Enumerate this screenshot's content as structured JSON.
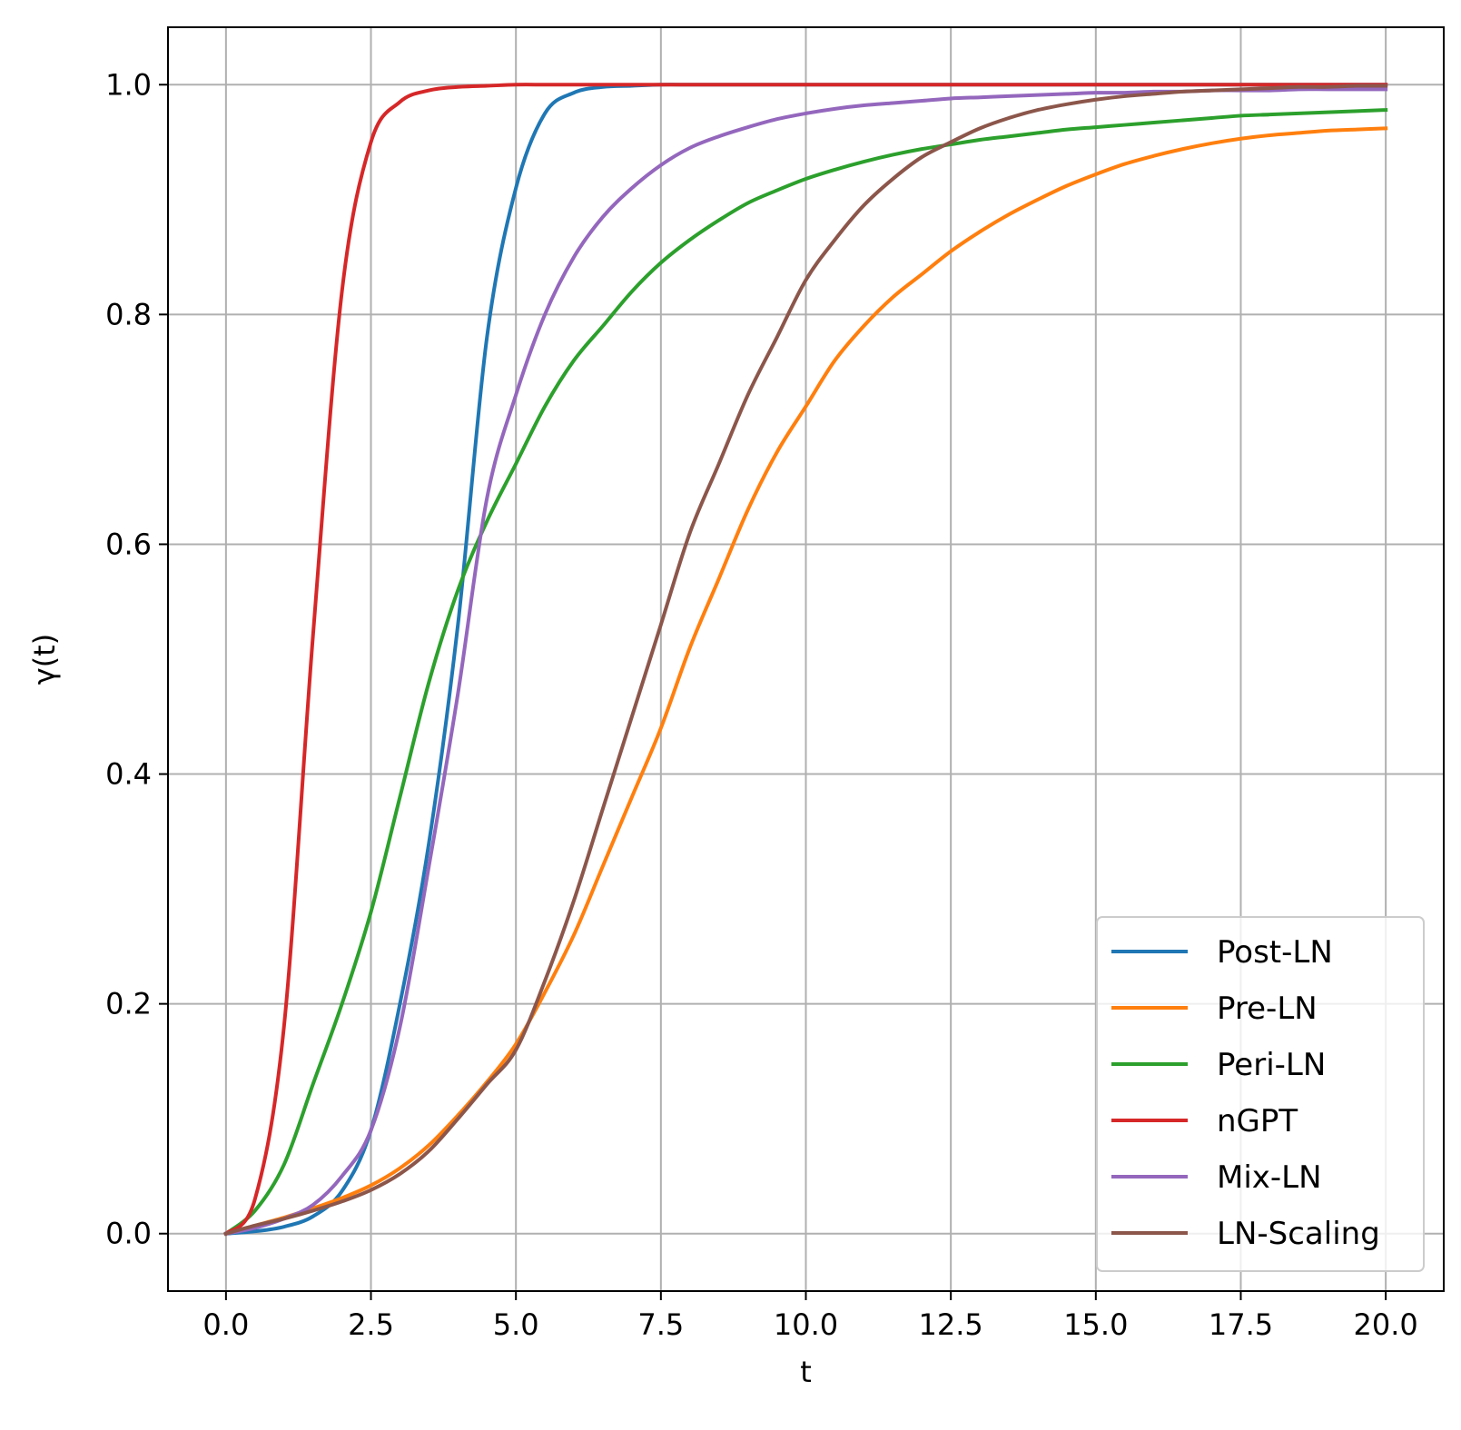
{
  "chart_data": {
    "type": "line",
    "title": "",
    "xlabel": "t",
    "ylabel": "γ(t)",
    "xlim": [
      -1.0,
      21.0
    ],
    "ylim": [
      -0.05,
      1.05
    ],
    "xticks": [
      0.0,
      2.5,
      5.0,
      7.5,
      10.0,
      12.5,
      15.0,
      17.5,
      20.0
    ],
    "xtick_labels": [
      "0.0",
      "2.5",
      "5.0",
      "7.5",
      "10.0",
      "12.5",
      "15.0",
      "17.5",
      "20.0"
    ],
    "yticks": [
      0.0,
      0.2,
      0.4,
      0.6,
      0.8,
      1.0
    ],
    "ytick_labels": [
      "0.0",
      "0.2",
      "0.4",
      "0.6",
      "0.8",
      "1.0"
    ],
    "grid": true,
    "legend_position": "lower-right",
    "x": [
      0,
      0.5,
      1,
      1.5,
      2,
      2.5,
      3,
      3.5,
      4,
      4.5,
      5,
      5.5,
      6,
      6.5,
      7,
      7.5,
      8,
      8.5,
      9,
      9.5,
      10,
      10.5,
      11,
      11.5,
      12,
      12.5,
      13,
      13.5,
      14,
      14.5,
      15,
      15.5,
      16,
      16.5,
      17,
      17.5,
      18,
      18.5,
      19,
      19.5,
      20
    ],
    "series": [
      {
        "name": "Post-LN",
        "color": "#1f77b4",
        "values": [
          0.0,
          0.002,
          0.006,
          0.015,
          0.037,
          0.09,
          0.2,
          0.34,
          0.53,
          0.78,
          0.91,
          0.975,
          0.993,
          0.998,
          0.999,
          1.0,
          1.0,
          1.0,
          1.0,
          1.0,
          1.0,
          1.0,
          1.0,
          1.0,
          1.0,
          1.0,
          1.0,
          1.0,
          1.0,
          1.0,
          1.0,
          1.0,
          1.0,
          1.0,
          1.0,
          1.0,
          1.0,
          1.0,
          1.0,
          1.0,
          1.0
        ]
      },
      {
        "name": "Pre-LN",
        "color": "#ff7f0e",
        "values": [
          0.0,
          0.007,
          0.014,
          0.022,
          0.031,
          0.042,
          0.057,
          0.077,
          0.103,
          0.132,
          0.165,
          0.21,
          0.26,
          0.32,
          0.38,
          0.44,
          0.51,
          0.57,
          0.63,
          0.68,
          0.72,
          0.76,
          0.79,
          0.815,
          0.835,
          0.855,
          0.872,
          0.887,
          0.9,
          0.912,
          0.922,
          0.931,
          0.938,
          0.944,
          0.949,
          0.953,
          0.956,
          0.958,
          0.96,
          0.961,
          0.962
        ]
      },
      {
        "name": "Peri-LN",
        "color": "#2ca02c",
        "values": [
          0.0,
          0.02,
          0.06,
          0.13,
          0.2,
          0.28,
          0.38,
          0.48,
          0.56,
          0.62,
          0.67,
          0.72,
          0.76,
          0.79,
          0.82,
          0.845,
          0.865,
          0.882,
          0.897,
          0.908,
          0.918,
          0.926,
          0.933,
          0.939,
          0.944,
          0.948,
          0.952,
          0.955,
          0.958,
          0.961,
          0.963,
          0.965,
          0.967,
          0.969,
          0.971,
          0.973,
          0.974,
          0.975,
          0.976,
          0.977,
          0.978
        ]
      },
      {
        "name": "nGPT",
        "color": "#d62728",
        "values": [
          0.0,
          0.03,
          0.18,
          0.52,
          0.82,
          0.95,
          0.985,
          0.995,
          0.998,
          0.999,
          1.0,
          1.0,
          1.0,
          1.0,
          1.0,
          1.0,
          1.0,
          1.0,
          1.0,
          1.0,
          1.0,
          1.0,
          1.0,
          1.0,
          1.0,
          1.0,
          1.0,
          1.0,
          1.0,
          1.0,
          1.0,
          1.0,
          1.0,
          1.0,
          1.0,
          1.0,
          1.0,
          1.0,
          1.0,
          1.0,
          1.0
        ]
      },
      {
        "name": "Mix-LN",
        "color": "#9467bd",
        "values": [
          0.0,
          0.005,
          0.013,
          0.025,
          0.05,
          0.09,
          0.18,
          0.32,
          0.47,
          0.64,
          0.73,
          0.8,
          0.85,
          0.885,
          0.91,
          0.93,
          0.945,
          0.955,
          0.963,
          0.97,
          0.975,
          0.979,
          0.982,
          0.984,
          0.986,
          0.988,
          0.989,
          0.99,
          0.991,
          0.992,
          0.993,
          0.993,
          0.994,
          0.994,
          0.995,
          0.995,
          0.995,
          0.996,
          0.996,
          0.996,
          0.996
        ]
      },
      {
        "name": "LN-Scaling",
        "color": "#8c564b",
        "values": [
          0.0,
          0.007,
          0.013,
          0.02,
          0.028,
          0.038,
          0.052,
          0.072,
          0.1,
          0.13,
          0.16,
          0.22,
          0.29,
          0.37,
          0.45,
          0.53,
          0.61,
          0.67,
          0.73,
          0.78,
          0.83,
          0.865,
          0.895,
          0.918,
          0.937,
          0.95,
          0.962,
          0.971,
          0.978,
          0.983,
          0.987,
          0.99,
          0.992,
          0.994,
          0.995,
          0.996,
          0.997,
          0.998,
          0.998,
          0.999,
          0.999
        ]
      }
    ]
  }
}
